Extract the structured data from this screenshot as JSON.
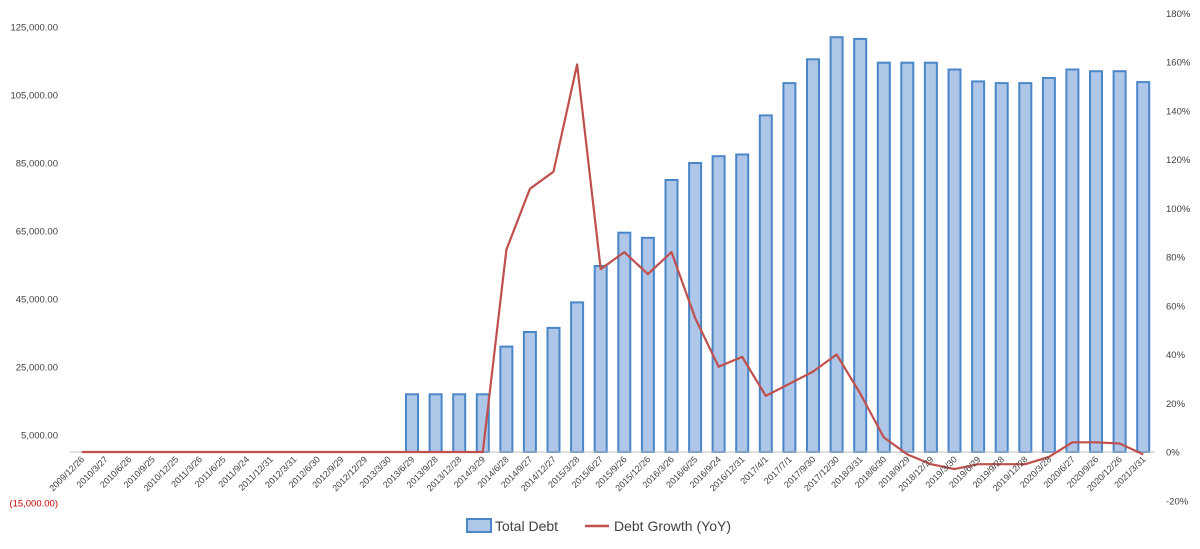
{
  "chart_data": {
    "type": "bar+line",
    "categories": [
      "2009/12/26",
      "2010/3/27",
      "2010/6/26",
      "2010/9/25",
      "2010/12/25",
      "2011/3/26",
      "2011/6/25",
      "2011/9/24",
      "2011/12/31",
      "2012/3/31",
      "2012/6/30",
      "2012/9/29",
      "2012/12/29",
      "2013/3/30",
      "2013/6/29",
      "2013/9/28",
      "2013/12/28",
      "2014/3/29",
      "2014/6/28",
      "2014/9/27",
      "2014/12/27",
      "2015/3/28",
      "2015/6/27",
      "2015/9/26",
      "2015/12/26",
      "2016/3/26",
      "2016/6/25",
      "2016/9/24",
      "2016/12/31",
      "2017/4/1",
      "2017/7/1",
      "2017/9/30",
      "2017/12/30",
      "2018/3/31",
      "2018/6/30",
      "2018/9/29",
      "2018/12/29",
      "2019/3/30",
      "2019/6/29",
      "2019/9/28",
      "2019/12/28",
      "2020/3/28",
      "2020/6/27",
      "2020/9/26",
      "2020/12/26",
      "2021/3/31"
    ],
    "series": [
      {
        "name": "Total Debt",
        "kind": "bar",
        "axis": "left",
        "color": "#aec7e8",
        "edge_color": "#4a86c8",
        "values": [
          0,
          0,
          0,
          0,
          0,
          0,
          0,
          0,
          0,
          0,
          0,
          0,
          0,
          0,
          16960,
          16960,
          16960,
          16960,
          31000,
          35300,
          36500,
          44000,
          54700,
          64500,
          63000,
          80000,
          85000,
          87000,
          87500,
          99000,
          108500,
          115500,
          122000,
          121500,
          114500,
          114500,
          114500,
          112500,
          109000,
          108500,
          108500,
          110000,
          112500,
          112000,
          112000,
          108800
        ]
      },
      {
        "name": "Debt Growth (YoY)",
        "kind": "line",
        "axis": "right",
        "color": "#c0504d",
        "values": [
          0,
          0,
          0,
          0,
          0,
          0,
          0,
          0,
          0,
          0,
          0,
          0,
          0,
          0,
          0,
          0,
          0,
          0,
          83,
          108,
          115,
          159,
          75,
          82,
          73,
          82,
          55,
          35,
          39,
          23,
          28,
          33,
          40,
          24,
          6,
          -1,
          -5,
          -7,
          -5,
          -5,
          -5,
          -2,
          4,
          4,
          3.5,
          -1
        ]
      }
    ],
    "y_left": {
      "ticks": [
        "(15,000.00)",
        "5,000.00",
        "25,000.00",
        "45,000.00",
        "65,000.00",
        "85,000.00",
        "105,000.00",
        "125,000.00"
      ],
      "tick_values": [
        -15000,
        5000,
        25000,
        45000,
        65000,
        85000,
        105000,
        125000
      ],
      "range": [
        -15000,
        135000
      ]
    },
    "y_right": {
      "ticks": [
        "-20%",
        "0%",
        "20%",
        "40%",
        "60%",
        "80%",
        "100%",
        "120%",
        "140%",
        "160%",
        "180%"
      ],
      "tick_values": [
        -20,
        0,
        20,
        40,
        60,
        80,
        100,
        120,
        140,
        160,
        180
      ],
      "range": [
        -20,
        180
      ]
    },
    "legend_position": "bottom",
    "grid": false,
    "colors": {
      "negative_tick": "#cc0000",
      "axis": "#bfbfbf",
      "text": "#404040"
    }
  }
}
